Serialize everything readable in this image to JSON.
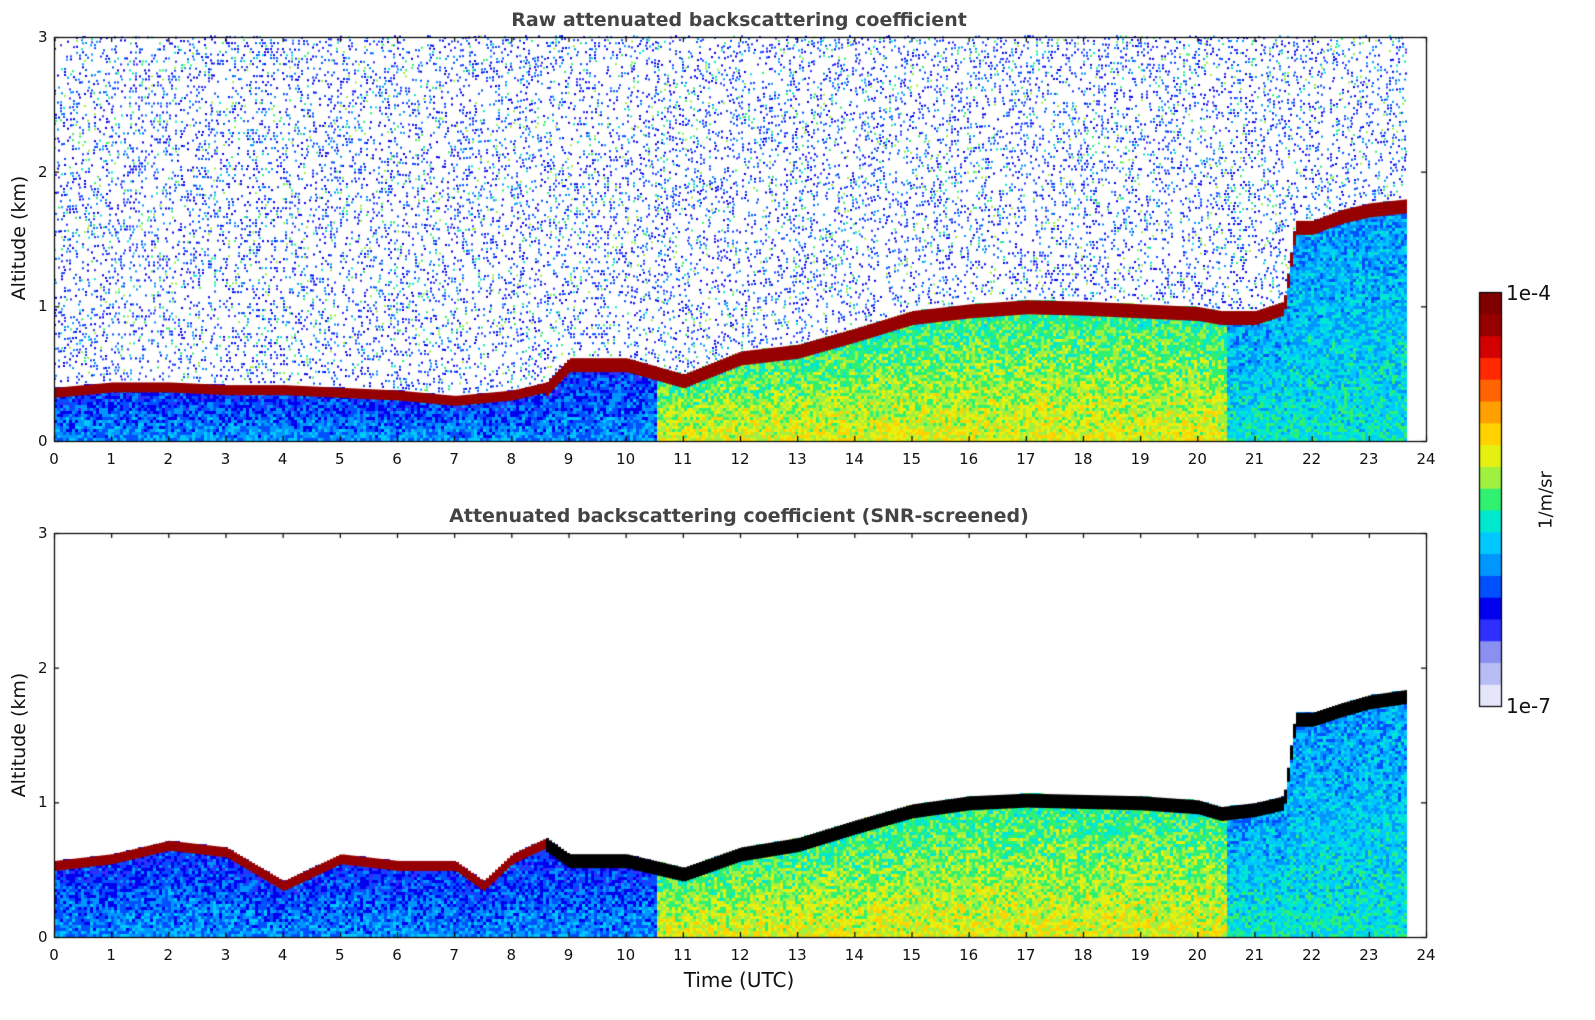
{
  "chart_data": [
    {
      "type": "heatmap",
      "title": "Raw attenuated backscattering coefficient",
      "xlabel": "",
      "ylabel": "Altitude (km)",
      "xlim": [
        0,
        24
      ],
      "ylim": [
        0,
        3
      ],
      "xticks": [
        "0",
        "1",
        "2",
        "3",
        "4",
        "5",
        "6",
        "7",
        "8",
        "9",
        "10",
        "11",
        "12",
        "13",
        "14",
        "15",
        "16",
        "17",
        "18",
        "19",
        "20",
        "21",
        "22",
        "23",
        "24"
      ],
      "yticks": [
        "0",
        "1",
        "2",
        "3"
      ],
      "data_end_hour": 23.65,
      "layer_top_km": [
        [
          0,
          0.38
        ],
        [
          1,
          0.42
        ],
        [
          2,
          0.42
        ],
        [
          3,
          0.4
        ],
        [
          4,
          0.4
        ],
        [
          5,
          0.38
        ],
        [
          6,
          0.36
        ],
        [
          7,
          0.32
        ],
        [
          8,
          0.36
        ],
        [
          8.6,
          0.42
        ],
        [
          9,
          0.6
        ],
        [
          10,
          0.6
        ],
        [
          11,
          0.48
        ],
        [
          12,
          0.65
        ],
        [
          13,
          0.7
        ],
        [
          14,
          0.82
        ],
        [
          15,
          0.95
        ],
        [
          16,
          1.0
        ],
        [
          17,
          1.03
        ],
        [
          18,
          1.02
        ],
        [
          19,
          1.0
        ],
        [
          20,
          0.98
        ],
        [
          20.4,
          0.95
        ],
        [
          21,
          0.95
        ],
        [
          21.5,
          1.02
        ],
        [
          21.7,
          1.62
        ],
        [
          22,
          1.62
        ],
        [
          22.5,
          1.7
        ],
        [
          23,
          1.75
        ],
        [
          23.65,
          1.78
        ]
      ]
    },
    {
      "type": "heatmap",
      "title": "Attenuated backscattering coefficient (SNR-screened)",
      "xlabel": "Time (UTC)",
      "ylabel": "Altitude (km)",
      "xlim": [
        0,
        24
      ],
      "ylim": [
        0,
        3
      ],
      "xticks": [
        "0",
        "1",
        "2",
        "3",
        "4",
        "5",
        "6",
        "7",
        "8",
        "9",
        "10",
        "11",
        "12",
        "13",
        "14",
        "15",
        "16",
        "17",
        "18",
        "19",
        "20",
        "21",
        "22",
        "23",
        "24"
      ],
      "yticks": [
        "0",
        "1",
        "2",
        "3"
      ],
      "data_end_hour": 23.65,
      "layer_top_km": [
        [
          0,
          0.55
        ],
        [
          1,
          0.6
        ],
        [
          2,
          0.7
        ],
        [
          3,
          0.65
        ],
        [
          4,
          0.4
        ],
        [
          5,
          0.6
        ],
        [
          6,
          0.55
        ],
        [
          7,
          0.55
        ],
        [
          7.5,
          0.4
        ],
        [
          8,
          0.6
        ],
        [
          8.6,
          0.72
        ],
        [
          9,
          0.6
        ],
        [
          10,
          0.6
        ],
        [
          11,
          0.5
        ],
        [
          12,
          0.65
        ],
        [
          13,
          0.72
        ],
        [
          14,
          0.85
        ],
        [
          15,
          0.97
        ],
        [
          16,
          1.03
        ],
        [
          17,
          1.05
        ],
        [
          18,
          1.04
        ],
        [
          19,
          1.03
        ],
        [
          20,
          1.0
        ],
        [
          20.4,
          0.95
        ],
        [
          21,
          0.98
        ],
        [
          21.5,
          1.03
        ],
        [
          21.7,
          1.65
        ],
        [
          22,
          1.65
        ],
        [
          22.5,
          1.72
        ],
        [
          23,
          1.78
        ],
        [
          23.65,
          1.82
        ]
      ]
    }
  ],
  "colorbar": {
    "top_label": "1e-4",
    "bottom_label": "1e-7",
    "unit_label": "1/m/sr",
    "colors": [
      "#e6e6fa",
      "#b8bdf5",
      "#8a90f0",
      "#2f2fff",
      "#0000ee",
      "#0050ff",
      "#0096ff",
      "#00c8ff",
      "#00e8d0",
      "#30f070",
      "#a0f040",
      "#e6f010",
      "#ffd200",
      "#ffa000",
      "#ff6400",
      "#ff2800",
      "#d20000",
      "#960000",
      "#800000"
    ]
  }
}
